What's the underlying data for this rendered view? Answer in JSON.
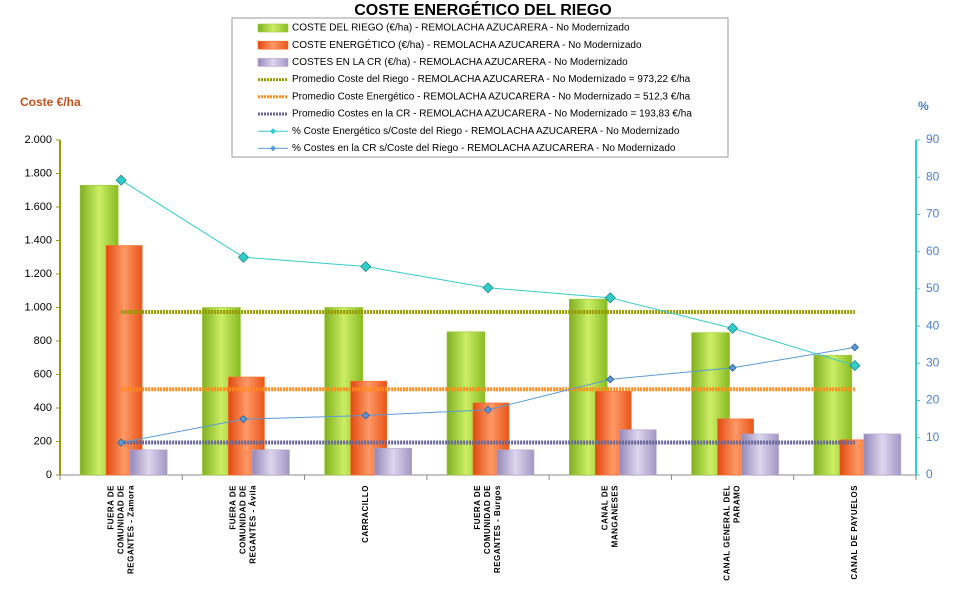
{
  "chart_data": {
    "type": "bar",
    "title": "COSTE ENERGÉTICO DEL RIEGO",
    "y_label": "Coste €/ha",
    "y2_label": "%",
    "categories": [
      [
        "FUERA DE",
        "COMUNIDAD DE",
        "REGANTES - Zamora"
      ],
      [
        "FUERA DE",
        "COMUNIDAD DE",
        "REGANTES - Ávila"
      ],
      [
        "CARRACILLO"
      ],
      [
        "FUERA DE",
        "COMUNIDAD DE",
        "REGANTES - Burgos"
      ],
      [
        "CANAL DE",
        "MANGANESES"
      ],
      [
        "CANAL GENERAL DEL",
        "PARAMO"
      ],
      [
        "CANAL DE PAYUELOS"
      ]
    ],
    "ylim": [
      0,
      2000
    ],
    "yticks": [
      0,
      200,
      400,
      600,
      800,
      {
        "value": 1000,
        "label": "1.000"
      },
      {
        "value": 1200,
        "label": "1.200"
      },
      {
        "value": 1400,
        "label": "1.400"
      },
      {
        "value": 1600,
        "label": "1.600"
      },
      {
        "value": 1800,
        "label": "1.800"
      },
      {
        "value": 2000,
        "label": "2.000"
      }
    ],
    "y2lim": [
      0,
      90
    ],
    "y2ticks": [
      0,
      10,
      20,
      30,
      40,
      50,
      60,
      70,
      80,
      90
    ],
    "series": [
      {
        "name": "COSTE DEL RIEGO (€/ha) - REMOLACHA AZUCARERA - No Modernizado",
        "kind": "bar",
        "color": "#99cc33",
        "values": [
          1730,
          1000,
          1000,
          855,
          1050,
          850,
          715
        ]
      },
      {
        "name": "COSTE ENERGÉTICO (€/ha) - REMOLACHA AZUCARERA - No Modernizado",
        "kind": "bar",
        "color": "#ff6622",
        "values": [
          1370,
          585,
          560,
          430,
          500,
          335,
          210
        ]
      },
      {
        "name": "COSTES EN LA CR (€/ha) - REMOLACHA AZUCARERA - No Modernizado",
        "kind": "bar",
        "color": "#b0a4cc",
        "values": [
          150,
          150,
          160,
          150,
          270,
          245,
          245
        ]
      },
      {
        "name": "Promedio Coste del Riego - REMOLACHA AZUCARERA - No Modernizado = 973,22 €/ha",
        "kind": "average",
        "color": "#999900",
        "value": 973.22
      },
      {
        "name": "Promedio Coste Energético - REMOLACHA AZUCARERA - No Modernizado = 512,3 €/ha",
        "kind": "average",
        "color": "#ff8c1a",
        "value": 512.3
      },
      {
        "name": "Promedio Costes en la CR - REMOLACHA AZUCARERA - No Modernizado = 193,83 €/ha",
        "kind": "average",
        "color": "#666699",
        "value": 193.83
      },
      {
        "name": "% Coste Energético s/Coste del Riego - REMOLACHA AZUCARERA - No Modernizado",
        "kind": "line",
        "axis": "y2",
        "color": "#33cccc",
        "values": [
          79.2,
          58.5,
          56.0,
          50.3,
          47.6,
          39.4,
          29.4
        ]
      },
      {
        "name": "% Costes en la CR s/Coste del Riego - REMOLACHA AZUCARERA - No Modernizado",
        "kind": "line",
        "axis": "y2",
        "color": "#5b9bd5",
        "values": [
          8.7,
          15.0,
          16.0,
          17.5,
          25.7,
          28.8,
          34.3
        ]
      }
    ]
  }
}
